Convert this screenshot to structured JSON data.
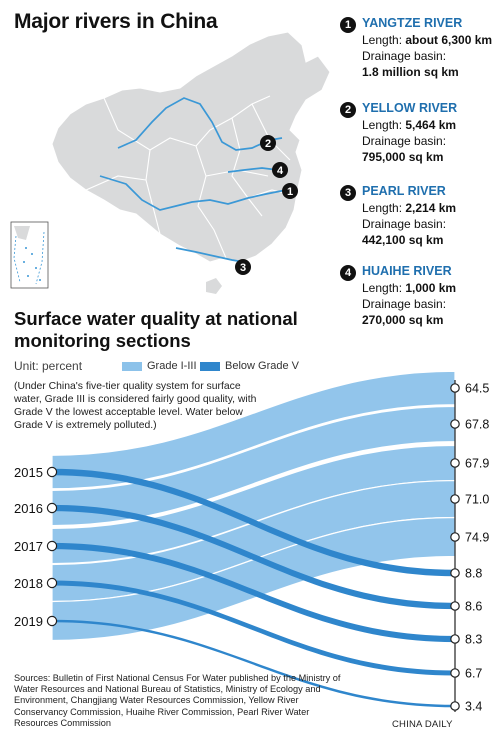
{
  "map": {
    "title": "Major rivers in China",
    "markers": [
      "1",
      "2",
      "3",
      "4"
    ]
  },
  "rivers": [
    {
      "num": "1",
      "name": "YANGTZE RIVER",
      "length_label": "Length: ",
      "length": "about 6,300 km",
      "basin_label": "Drainage basin:",
      "basin": "1.8 million sq km"
    },
    {
      "num": "2",
      "name": "YELLOW RIVER",
      "length_label": "Length: ",
      "length": "5,464 km",
      "basin_label": "Drainage basin:",
      "basin": "795,000 sq km"
    },
    {
      "num": "3",
      "name": "PEARL RIVER",
      "length_label": "Length: ",
      "length": "2,214 km",
      "basin_label": "Drainage basin:",
      "basin": "442,100 sq km"
    },
    {
      "num": "4",
      "name": "HUAIHE RIVER",
      "length_label": "Length: ",
      "length": "1,000 km",
      "basin_label": "Drainage basin:",
      "basin": "270,000 sq km"
    }
  ],
  "section": {
    "title": "Surface water quality at national monitoring sections",
    "unit": "Unit: percent",
    "note": "(Under China's five-tier quality system for surface water, Grade III is considered fairly good quality, with Grade V the lowest acceptable level. Water below Grade V is extremely polluted.)",
    "sources": "Sources: Bulletin of First National Census For Water published by the Ministry of Water Resources and National Bureau of Statistics, Ministry of Ecology and Environment, Changjiang Water Resources Commission, Yellow River Conservancy Commission, Huaihe River Commission, Pearl River Water Resources Commission",
    "credit": "CHINA DAILY"
  },
  "colors": {
    "grade_good": "#8cc2ea",
    "below_v": "#2f86cc",
    "river_blue": "#3b98d6",
    "map_gray": "#d9dadb",
    "title_blue": "#1f6fae"
  },
  "chart_data": {
    "type": "sankey",
    "categories": [
      "2015",
      "2016",
      "2017",
      "2018",
      "2019"
    ],
    "series": [
      {
        "name": "Grade I-III",
        "values": [
          64.5,
          67.8,
          67.9,
          71.0,
          74.9
        ],
        "labels": [
          "64.5",
          "67.8",
          "67.9",
          "71.0",
          "74.9"
        ]
      },
      {
        "name": "Below Grade V",
        "values": [
          8.8,
          8.6,
          8.3,
          6.7,
          3.4
        ],
        "labels": [
          "8.8",
          "8.6",
          "8.3",
          "6.7",
          "3.4"
        ]
      }
    ],
    "legend_position": "top"
  }
}
